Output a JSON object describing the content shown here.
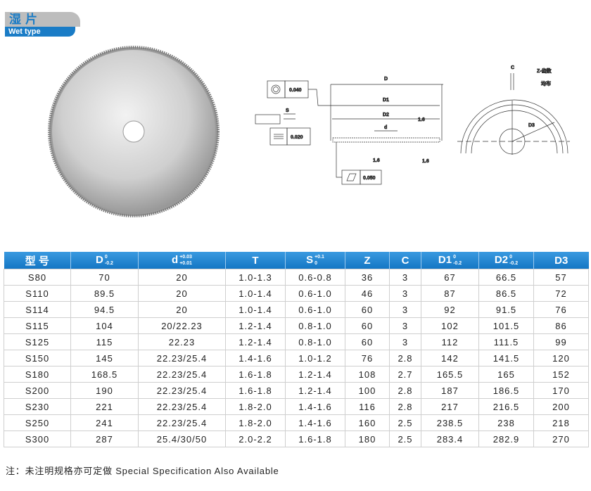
{
  "badge": {
    "title_cn": "湿片",
    "title_en": "Wet type"
  },
  "drawing": {
    "concentricity": "0.040",
    "s_label": "S",
    "parallelism": "0.020",
    "d_outer": "D",
    "d1": "D1",
    "d2": "D2",
    "d_inner": "d",
    "roughness": "1.6",
    "flatness": "0.050",
    "c_label": "C",
    "z_label": "Z-齿数",
    "z_note": "均布",
    "d3": "D3"
  },
  "table": {
    "headers": [
      {
        "main": "型 号",
        "sup": "",
        "sub": ""
      },
      {
        "main": "D",
        "sup": "0",
        "sub": "-0.2"
      },
      {
        "main": "d",
        "sup": "+0.03",
        "sub": "+0.01"
      },
      {
        "main": "T",
        "sup": "",
        "sub": ""
      },
      {
        "main": "S",
        "sup": "+0.1",
        "sub": "0"
      },
      {
        "main": "Z",
        "sup": "",
        "sub": ""
      },
      {
        "main": "C",
        "sup": "",
        "sub": ""
      },
      {
        "main": "D1",
        "sup": "0",
        "sub": "-0.2"
      },
      {
        "main": "D2",
        "sup": "0",
        "sub": "-0.2"
      },
      {
        "main": "D3",
        "sup": "",
        "sub": ""
      }
    ],
    "rows": [
      [
        "S80",
        "70",
        "20",
        "1.0-1.3",
        "0.6-0.8",
        "36",
        "3",
        "67",
        "66.5",
        "57"
      ],
      [
        "S110",
        "89.5",
        "20",
        "1.0-1.4",
        "0.6-1.0",
        "46",
        "3",
        "87",
        "86.5",
        "72"
      ],
      [
        "S114",
        "94.5",
        "20",
        "1.0-1.4",
        "0.6-1.0",
        "60",
        "3",
        "92",
        "91.5",
        "76"
      ],
      [
        "S115",
        "104",
        "20/22.23",
        "1.2-1.4",
        "0.8-1.0",
        "60",
        "3",
        "102",
        "101.5",
        "86"
      ],
      [
        "S125",
        "115",
        "22.23",
        "1.2-1.4",
        "0.8-1.0",
        "60",
        "3",
        "112",
        "111.5",
        "99"
      ],
      [
        "S150",
        "145",
        "22.23/25.4",
        "1.4-1.6",
        "1.0-1.2",
        "76",
        "2.8",
        "142",
        "141.5",
        "120"
      ],
      [
        "S180",
        "168.5",
        "22.23/25.4",
        "1.6-1.8",
        "1.2-1.4",
        "108",
        "2.7",
        "165.5",
        "165",
        "152"
      ],
      [
        "S200",
        "190",
        "22.23/25.4",
        "1.6-1.8",
        "1.2-1.4",
        "100",
        "2.8",
        "187",
        "186.5",
        "170"
      ],
      [
        "S230",
        "221",
        "22.23/25.4",
        "1.8-2.0",
        "1.4-1.6",
        "116",
        "2.8",
        "217",
        "216.5",
        "200"
      ],
      [
        "S250",
        "241",
        "22.23/25.4",
        "1.8-2.0",
        "1.4-1.6",
        "160",
        "2.5",
        "238.5",
        "238",
        "218"
      ],
      [
        "S300",
        "287",
        "25.4/30/50",
        "2.0-2.2",
        "1.6-1.8",
        "180",
        "2.5",
        "283.4",
        "282.9",
        "270"
      ]
    ]
  },
  "footer": "注：未注明规格亦可定做 Special Specification Also Available",
  "colors": {
    "header_blue": "#1a7cc6",
    "badge_gray": "#bdbdbd"
  }
}
